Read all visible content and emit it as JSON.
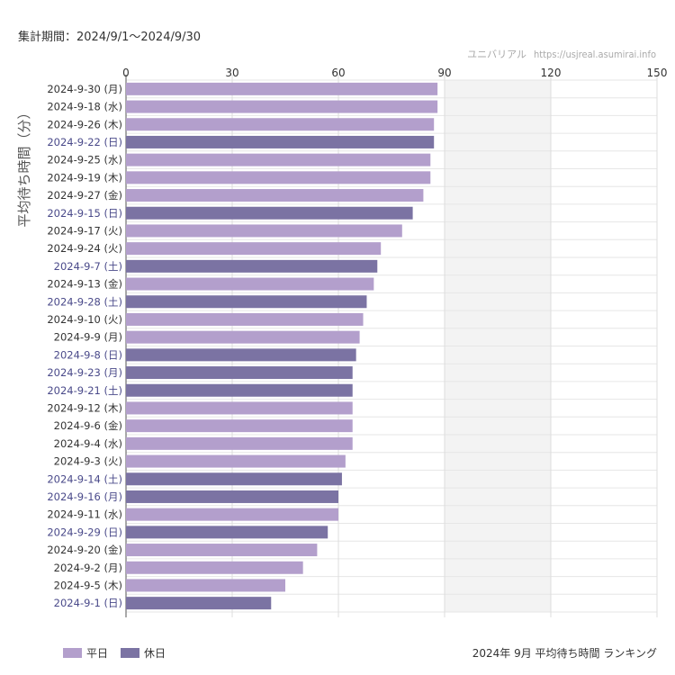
{
  "header": {
    "period_text": "集計期間：2024/9/1～2024/9/30",
    "site_name": "ユニバリアル",
    "site_url": "https://usjreal.asumirai.info"
  },
  "legend": [
    {
      "label": "平日",
      "color": "#b39fcc"
    },
    {
      "label": "休日",
      "color": "#7b73a3"
    }
  ],
  "footer": {
    "title": "2024年 9月 平均待ち時間 ランキング"
  },
  "colors": {
    "weekday": "#b39fcc",
    "holiday": "#7b73a3",
    "holiday_label": "#4a4a8a",
    "weekday_label": "#333333"
  },
  "chart_data": {
    "type": "bar",
    "orientation": "horizontal",
    "ylabel": "平均待ち時間（分）",
    "xlim": [
      0,
      150
    ],
    "xticks": [
      0,
      30,
      60,
      90,
      120,
      150
    ],
    "shaded_range": [
      90,
      120
    ],
    "grid": true,
    "legend_position": "bottom-left",
    "categories": [
      "2024-9-30 (月)",
      "2024-9-18 (水)",
      "2024-9-26 (木)",
      "2024-9-22 (日)",
      "2024-9-25 (水)",
      "2024-9-19 (木)",
      "2024-9-27 (金)",
      "2024-9-15 (日)",
      "2024-9-17 (火)",
      "2024-9-24 (火)",
      "2024-9-7 (土)",
      "2024-9-13 (金)",
      "2024-9-28 (土)",
      "2024-9-10 (火)",
      "2024-9-9 (月)",
      "2024-9-8 (日)",
      "2024-9-23 (月)",
      "2024-9-21 (土)",
      "2024-9-12 (木)",
      "2024-9-6 (金)",
      "2024-9-4 (水)",
      "2024-9-3 (火)",
      "2024-9-14 (土)",
      "2024-9-16 (月)",
      "2024-9-11 (水)",
      "2024-9-29 (日)",
      "2024-9-20 (金)",
      "2024-9-2 (月)",
      "2024-9-5 (木)",
      "2024-9-1 (日)"
    ],
    "values": [
      88,
      88,
      87,
      87,
      86,
      86,
      84,
      81,
      78,
      72,
      71,
      70,
      68,
      67,
      66,
      65,
      64,
      64,
      64,
      64,
      64,
      62,
      61,
      60,
      60,
      57,
      54,
      50,
      45,
      41
    ],
    "day_type": [
      "平日",
      "平日",
      "平日",
      "休日",
      "平日",
      "平日",
      "平日",
      "休日",
      "平日",
      "平日",
      "休日",
      "平日",
      "休日",
      "平日",
      "平日",
      "休日",
      "休日",
      "休日",
      "平日",
      "平日",
      "平日",
      "平日",
      "休日",
      "休日",
      "平日",
      "休日",
      "平日",
      "平日",
      "平日",
      "休日"
    ]
  }
}
